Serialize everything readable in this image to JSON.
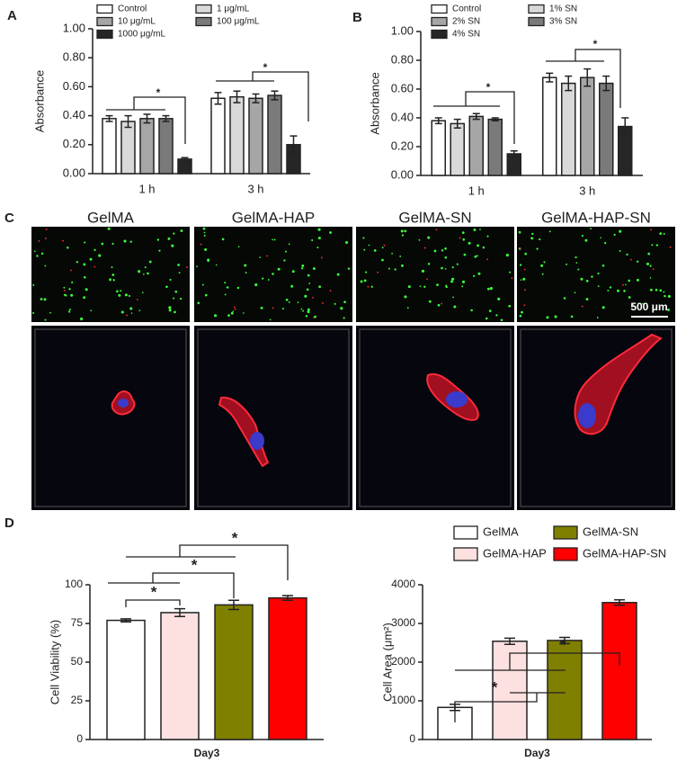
{
  "panel_labels": [
    "A",
    "B",
    "C",
    "D"
  ],
  "micrographs": {
    "titles": [
      "GelMA",
      "GelMA-HAP",
      "GelMA-SN",
      "GelMA-HAP-SN"
    ],
    "scale_bar": "500 μm"
  },
  "chart_data": [
    {
      "type": "bar",
      "ylabel": "Absorbance",
      "categories": [
        "1 h",
        "3 h"
      ],
      "ylim": [
        0,
        1
      ],
      "yticks": [
        {
          "value": 0,
          "label": "0.00"
        },
        {
          "value": 0.2,
          "label": "0.20"
        },
        {
          "value": 0.4,
          "label": "0.40"
        },
        {
          "value": 0.6,
          "label": "0.60"
        },
        {
          "value": 0.8,
          "label": "0.80"
        },
        {
          "value": 1,
          "label": "1.00"
        }
      ],
      "series": [
        {
          "name": "Control",
          "color": "#ffffff",
          "values": [
            0.38,
            0.52
          ],
          "errors": [
            0.02,
            0.04
          ]
        },
        {
          "name": "1 μg/mL",
          "color": "#d9d9d9",
          "values": [
            0.36,
            0.53
          ],
          "errors": [
            0.04,
            0.04
          ]
        },
        {
          "name": "10 μg/mL",
          "color": "#a6a6a6",
          "values": [
            0.38,
            0.52
          ],
          "errors": [
            0.03,
            0.03
          ]
        },
        {
          "name": "100 μg/mL",
          "color": "#7a7a7a",
          "values": [
            0.38,
            0.54
          ],
          "errors": [
            0.02,
            0.03
          ]
        },
        {
          "name": "1000 μg/mL",
          "color": "#262626",
          "values": [
            0.1,
            0.2
          ],
          "errors": [
            0.01,
            0.06
          ]
        }
      ],
      "annotations": [
        "*",
        "*"
      ]
    },
    {
      "type": "bar",
      "ylabel": "Absorbance",
      "categories": [
        "1 h",
        "3 h"
      ],
      "ylim": [
        0,
        1
      ],
      "yticks": [
        {
          "value": 0,
          "label": "0.00"
        },
        {
          "value": 0.2,
          "label": "0.20"
        },
        {
          "value": 0.4,
          "label": "0.40"
        },
        {
          "value": 0.6,
          "label": "0.60"
        },
        {
          "value": 0.8,
          "label": "0.80"
        },
        {
          "value": 1,
          "label": "1.00"
        }
      ],
      "series": [
        {
          "name": "Control",
          "color": "#ffffff",
          "values": [
            0.38,
            0.68
          ],
          "errors": [
            0.02,
            0.03
          ]
        },
        {
          "name": "1% SN",
          "color": "#d9d9d9",
          "values": [
            0.36,
            0.64
          ],
          "errors": [
            0.03,
            0.05
          ]
        },
        {
          "name": "2% SN",
          "color": "#a6a6a6",
          "values": [
            0.41,
            0.68
          ],
          "errors": [
            0.02,
            0.06
          ]
        },
        {
          "name": "3% SN",
          "color": "#7a7a7a",
          "values": [
            0.39,
            0.64
          ],
          "errors": [
            0.01,
            0.05
          ]
        },
        {
          "name": "4% SN",
          "color": "#262626",
          "values": [
            0.15,
            0.34
          ],
          "errors": [
            0.02,
            0.06
          ]
        }
      ],
      "annotations": [
        "*",
        "*"
      ]
    },
    {
      "type": "bar",
      "ylabel": "Cell Viability (%)",
      "categories": [
        "Day3"
      ],
      "ylim": [
        0,
        100
      ],
      "yticks": [
        0,
        25,
        50,
        75,
        100
      ],
      "series": [
        {
          "color": "#ffffff",
          "values": [
            77
          ],
          "errors": [
            1
          ]
        },
        {
          "color": "#fde0e0",
          "values": [
            82
          ],
          "errors": [
            2.5
          ]
        },
        {
          "color": "#808000",
          "values": [
            87
          ],
          "errors": [
            3
          ]
        },
        {
          "color": "#ff0000",
          "values": [
            91.5
          ],
          "errors": [
            1.5
          ]
        }
      ],
      "annotations": [
        "*",
        "*",
        "*"
      ]
    },
    {
      "type": "bar",
      "ylabel": "Cell Area (μm²)",
      "categories": [
        "Day3"
      ],
      "ylim": [
        0,
        4000
      ],
      "yticks": [
        0,
        1000,
        2000,
        3000,
        4000
      ],
      "series": [
        {
          "name": "GelMA",
          "color": "#ffffff",
          "values": [
            830
          ],
          "errors": [
            80
          ]
        },
        {
          "name": "GelMA-HAP",
          "color": "#fde0e0",
          "values": [
            2540
          ],
          "errors": [
            80
          ]
        },
        {
          "name": "GelMA-SN",
          "color": "#808000",
          "values": [
            2560
          ],
          "errors": [
            80
          ]
        },
        {
          "name": "GelMA-HAP-SN",
          "color": "#ff0000",
          "values": [
            3540
          ],
          "errors": [
            70
          ]
        }
      ],
      "annotations": [
        "*",
        "*"
      ]
    }
  ]
}
